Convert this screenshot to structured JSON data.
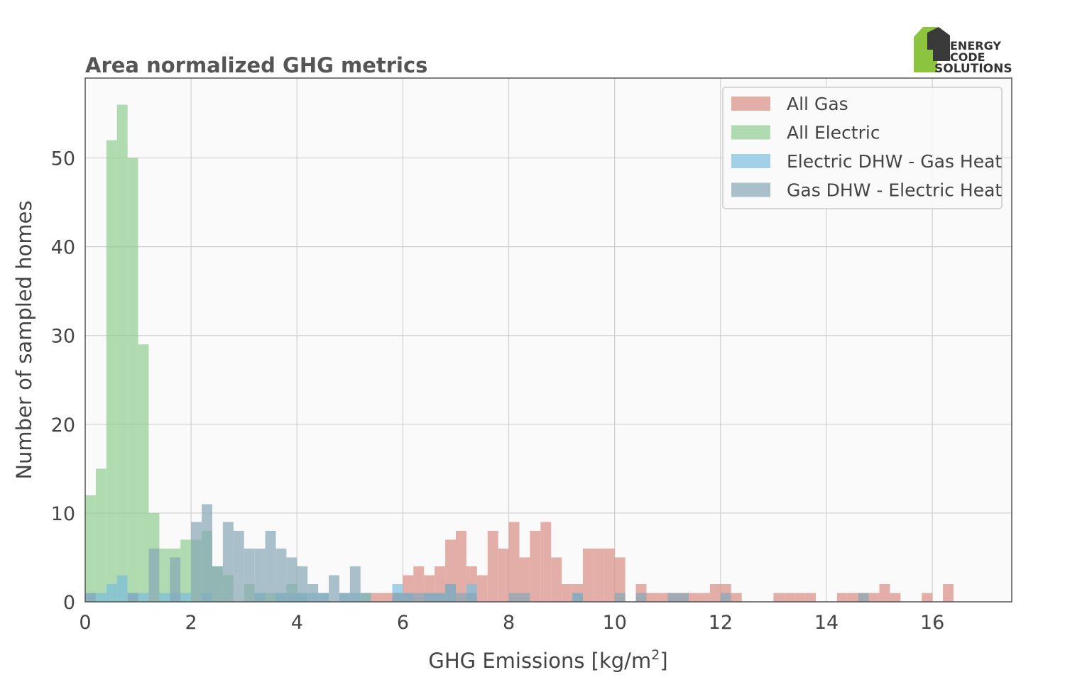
{
  "chart_data": {
    "type": "histogram",
    "title": "Area normalized GHG metrics",
    "xlabel": "GHG Emissions [kg/m",
    "xlabel_sup": "2",
    "xlabel_end": "]",
    "ylabel": "Number of sampled homes",
    "xlim": [
      0,
      17.5
    ],
    "ylim": [
      0,
      59
    ],
    "bin_width": 0.2,
    "grid": true,
    "legend_position": "top-right",
    "xticks": [
      0,
      2,
      4,
      6,
      8,
      10,
      12,
      14,
      16
    ],
    "yticks": [
      0,
      10,
      20,
      30,
      40,
      50
    ],
    "series": [
      {
        "name": "All Gas",
        "color": "#d98d83",
        "bins": [
          [
            5.4,
            1
          ],
          [
            5.6,
            1
          ],
          [
            5.8,
            1
          ],
          [
            6.0,
            3
          ],
          [
            6.2,
            4
          ],
          [
            6.4,
            3
          ],
          [
            6.6,
            4
          ],
          [
            6.8,
            7
          ],
          [
            7.0,
            8
          ],
          [
            7.2,
            4
          ],
          [
            7.4,
            3
          ],
          [
            7.6,
            8
          ],
          [
            7.8,
            6
          ],
          [
            8.0,
            9
          ],
          [
            8.2,
            5
          ],
          [
            8.4,
            8
          ],
          [
            8.6,
            9
          ],
          [
            8.8,
            5
          ],
          [
            9.0,
            2
          ],
          [
            9.2,
            2
          ],
          [
            9.4,
            6
          ],
          [
            9.6,
            6
          ],
          [
            9.8,
            6
          ],
          [
            10.0,
            5
          ],
          [
            10.4,
            2
          ],
          [
            10.6,
            1
          ],
          [
            10.8,
            1
          ],
          [
            11.0,
            1
          ],
          [
            11.2,
            1
          ],
          [
            11.4,
            1
          ],
          [
            11.6,
            1
          ],
          [
            11.8,
            2
          ],
          [
            12.0,
            2
          ],
          [
            12.2,
            1
          ],
          [
            13.0,
            1
          ],
          [
            13.2,
            1
          ],
          [
            13.4,
            1
          ],
          [
            13.6,
            1
          ],
          [
            14.2,
            1
          ],
          [
            14.4,
            1
          ],
          [
            14.6,
            1
          ],
          [
            14.8,
            1
          ],
          [
            15.0,
            2
          ],
          [
            15.2,
            1
          ],
          [
            15.8,
            1
          ],
          [
            16.2,
            2
          ]
        ]
      },
      {
        "name": "All Electric",
        "color": "#90cc8e",
        "bins": [
          [
            0.0,
            12
          ],
          [
            0.2,
            15
          ],
          [
            0.4,
            52
          ],
          [
            0.6,
            56
          ],
          [
            0.8,
            50
          ],
          [
            1.0,
            29
          ],
          [
            1.2,
            10
          ],
          [
            1.4,
            6
          ],
          [
            1.6,
            6
          ],
          [
            1.8,
            7
          ],
          [
            2.0,
            7
          ],
          [
            2.2,
            8
          ],
          [
            2.4,
            4
          ],
          [
            2.6,
            3
          ],
          [
            3.0,
            2
          ],
          [
            3.2,
            1
          ],
          [
            3.4,
            1
          ],
          [
            3.6,
            1
          ],
          [
            3.8,
            2
          ],
          [
            4.0,
            1
          ],
          [
            5.2,
            1
          ]
        ]
      },
      {
        "name": "Electric DHW - Gas Heat",
        "color": "#7cbedd",
        "bins": [
          [
            0.0,
            1
          ],
          [
            0.2,
            1
          ],
          [
            0.4,
            2
          ],
          [
            0.6,
            3
          ],
          [
            0.8,
            1
          ],
          [
            1.0,
            1
          ],
          [
            1.4,
            1
          ],
          [
            1.6,
            1
          ],
          [
            1.8,
            1
          ],
          [
            2.2,
            1
          ],
          [
            3.2,
            1
          ],
          [
            3.6,
            1
          ],
          [
            3.8,
            1
          ],
          [
            4.0,
            1
          ],
          [
            4.2,
            1
          ],
          [
            4.4,
            1
          ],
          [
            4.8,
            1
          ],
          [
            5.0,
            1
          ],
          [
            5.8,
            2
          ],
          [
            6.0,
            1
          ],
          [
            6.4,
            1
          ],
          [
            6.6,
            1
          ],
          [
            6.8,
            2
          ],
          [
            7.2,
            2
          ],
          [
            9.2,
            1
          ]
        ]
      },
      {
        "name": "Gas DHW - Electric Heat",
        "color": "#86a6b7",
        "bins": [
          [
            0.0,
            1
          ],
          [
            0.8,
            1
          ],
          [
            1.2,
            6
          ],
          [
            1.6,
            5
          ],
          [
            2.0,
            9
          ],
          [
            2.2,
            11
          ],
          [
            2.4,
            4
          ],
          [
            2.6,
            9
          ],
          [
            2.8,
            8
          ],
          [
            3.0,
            6
          ],
          [
            3.2,
            6
          ],
          [
            3.4,
            8
          ],
          [
            3.6,
            6
          ],
          [
            3.8,
            5
          ],
          [
            4.0,
            4
          ],
          [
            4.2,
            2
          ],
          [
            4.4,
            1
          ],
          [
            4.6,
            3
          ],
          [
            4.8,
            1
          ],
          [
            5.0,
            4
          ],
          [
            5.2,
            1
          ],
          [
            5.8,
            1
          ],
          [
            6.0,
            1
          ],
          [
            6.2,
            1
          ],
          [
            6.4,
            1
          ],
          [
            6.6,
            1
          ],
          [
            6.8,
            2
          ],
          [
            7.0,
            1
          ],
          [
            7.2,
            1
          ],
          [
            8.0,
            1
          ],
          [
            8.2,
            1
          ],
          [
            9.2,
            1
          ],
          [
            10.0,
            1
          ],
          [
            10.4,
            1
          ],
          [
            11.0,
            1
          ],
          [
            11.2,
            1
          ],
          [
            12.0,
            1
          ],
          [
            14.6,
            1
          ]
        ]
      }
    ]
  },
  "logo": {
    "line1": "ENERGY",
    "line2": "CODE",
    "line3": "SOLUTIONS",
    "green": "#8cc440",
    "dark": "#3a3a3a",
    "gray": "#9a9a9a"
  }
}
